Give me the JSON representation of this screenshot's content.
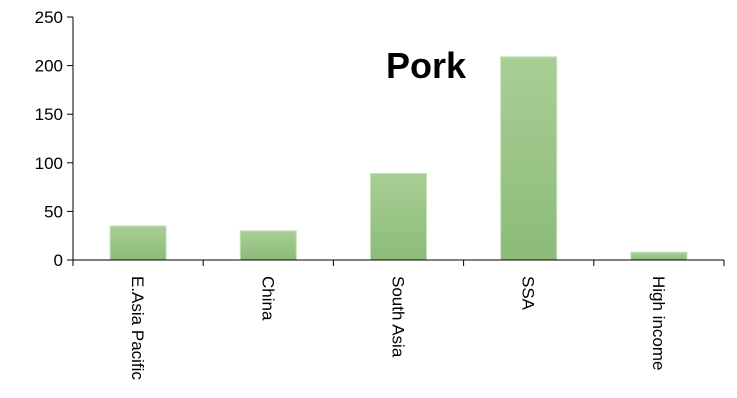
{
  "chart_data": {
    "type": "bar",
    "title": "Pork",
    "categories": [
      "E.Asia Pacific",
      "China",
      "South Asia",
      "SSA",
      "High income"
    ],
    "values": [
      35,
      30,
      89,
      209,
      8
    ],
    "ylim": [
      0,
      250
    ],
    "yticks": [
      0,
      50,
      100,
      150,
      200,
      250
    ],
    "xlabel": "",
    "ylabel": "",
    "grid": false,
    "legend": "none",
    "bar_color_light": "#a8cf95",
    "bar_color_dark": "#8cbb78",
    "axis_color": "#000000"
  }
}
